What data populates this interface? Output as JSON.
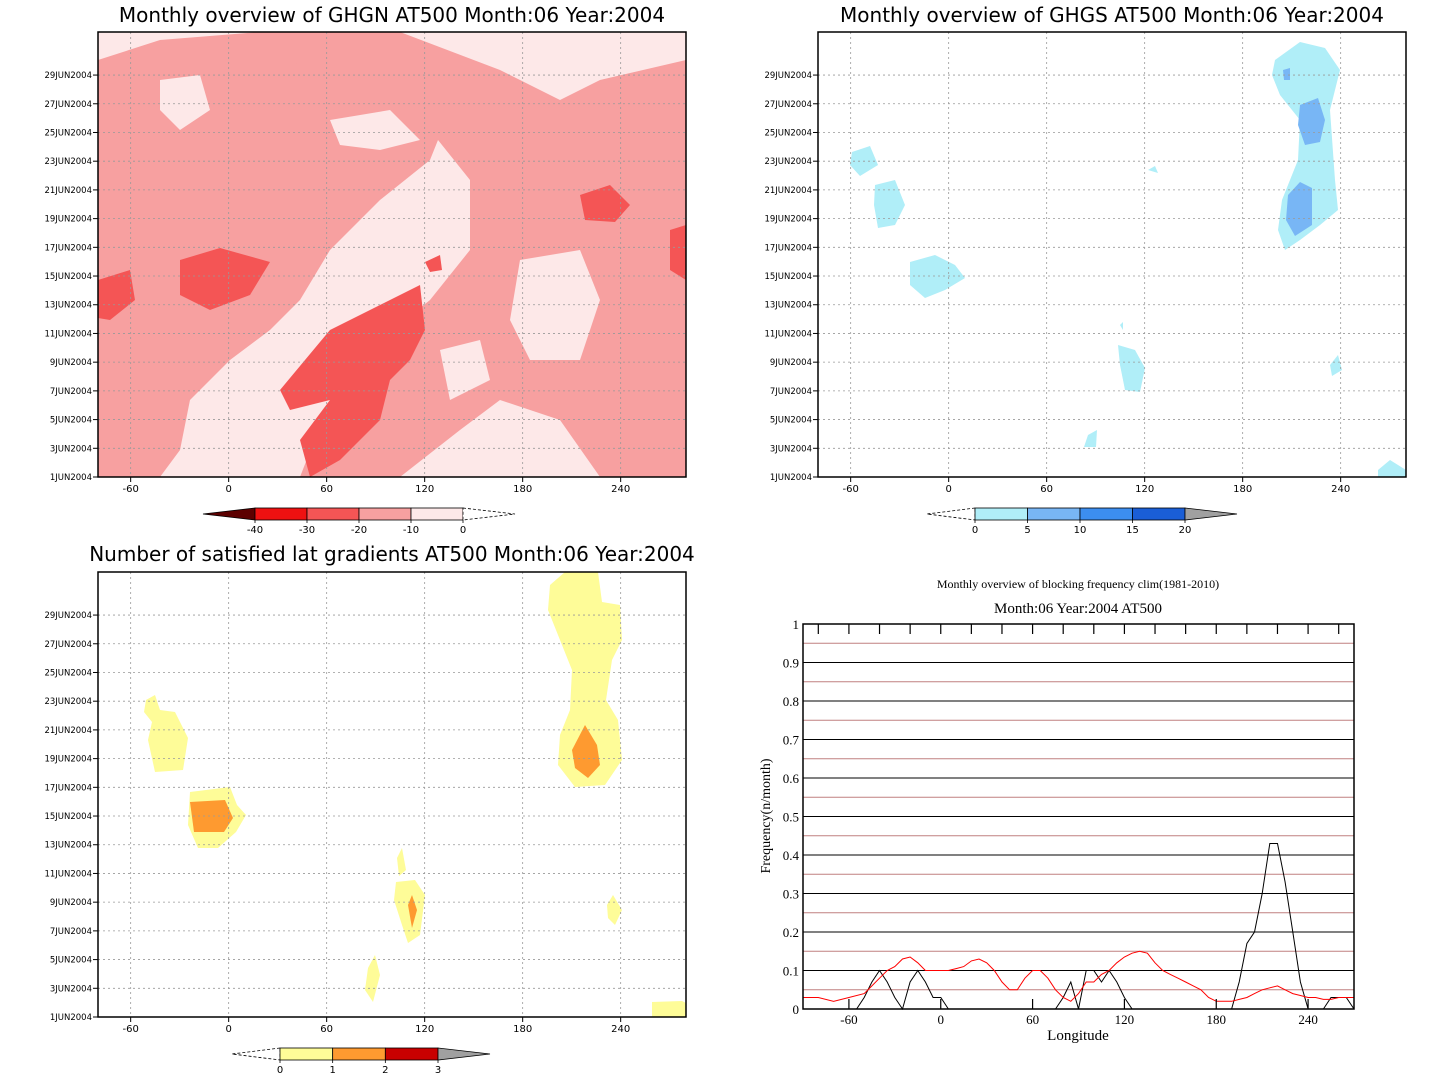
{
  "chart_data": [
    {
      "type": "heatmap",
      "title": "Monthly overview of GHGN AT500 Month:06 Year:2004",
      "x_ticks": [
        -60,
        0,
        60,
        120,
        180,
        240
      ],
      "xlim": [
        -80,
        280
      ],
      "y_ticks": [
        "1JUN2004",
        "3JUN2004",
        "5JUN2004",
        "7JUN2004",
        "9JUN2004",
        "11JUN2004",
        "13JUN2004",
        "15JUN2004",
        "17JUN2004",
        "19JUN2004",
        "21JUN2004",
        "23JUN2004",
        "25JUN2004",
        "27JUN2004",
        "29JUN2004"
      ],
      "colorbar": {
        "labels": [
          "-40",
          "-30",
          "-20",
          "-10",
          "0"
        ],
        "colors": [
          "#5c0000",
          "#ee1111",
          "#f45555",
          "#f7a0a0",
          "#fde8e8"
        ]
      }
    },
    {
      "type": "heatmap",
      "title": "Monthly overview of GHGS AT500 Month:06 Year:2004",
      "x_ticks": [
        -60,
        0,
        60,
        120,
        180,
        240
      ],
      "xlim": [
        -80,
        280
      ],
      "y_ticks": [
        "1JUN2004",
        "3JUN2004",
        "5JUN2004",
        "7JUN2004",
        "9JUN2004",
        "11JUN2004",
        "13JUN2004",
        "15JUN2004",
        "17JUN2004",
        "19JUN2004",
        "21JUN2004",
        "23JUN2004",
        "25JUN2004",
        "27JUN2004",
        "29JUN2004"
      ],
      "colorbar": {
        "labels": [
          "0",
          "5",
          "10",
          "15",
          "20"
        ],
        "colors": [
          "#b0eef8",
          "#78b6f5",
          "#3c8ef0",
          "#1a5ed6",
          "#a0a0a0"
        ]
      }
    },
    {
      "type": "heatmap",
      "title": "Number of satisfied lat gradients AT500 Month:06 Year:2004",
      "x_ticks": [
        -60,
        0,
        60,
        120,
        180,
        240
      ],
      "xlim": [
        -80,
        280
      ],
      "y_ticks": [
        "1JUN2004",
        "3JUN2004",
        "5JUN2004",
        "7JUN2004",
        "9JUN2004",
        "11JUN2004",
        "13JUN2004",
        "15JUN2004",
        "17JUN2004",
        "19JUN2004",
        "21JUN2004",
        "23JUN2004",
        "25JUN2004",
        "27JUN2004",
        "29JUN2004"
      ],
      "colorbar": {
        "labels": [
          "0",
          "1",
          "2",
          "3"
        ],
        "colors": [
          "#fefc98",
          "#fe9a30",
          "#c80000",
          "#a0a0a0"
        ]
      }
    },
    {
      "type": "line",
      "title": "Monthly overview of blocking frequency clim(1981-2010)",
      "subtitle": "Month:06 Year:2004  AT500",
      "xlabel": "Longitude",
      "ylabel": "Frequency(n/month)",
      "xlim": [
        -90,
        270
      ],
      "ylim": [
        0,
        1
      ],
      "x_ticks": [
        -60,
        0,
        60,
        120,
        180,
        240
      ],
      "y_ticks": [
        "0",
        "0.1",
        "0.2",
        "0.3",
        "0.4",
        "0.5",
        "0.6",
        "0.7",
        "0.8",
        "0.9",
        "1"
      ],
      "series": [
        {
          "color": "#000000",
          "x": [
            -90,
            -70,
            -55,
            -50,
            -45,
            -40,
            -35,
            -30,
            -25,
            -20,
            -15,
            -10,
            -5,
            0,
            5,
            10,
            15,
            20,
            25,
            30,
            35,
            40,
            45,
            50,
            55,
            60,
            65,
            70,
            75,
            80,
            85,
            90,
            95,
            100,
            105,
            110,
            115,
            120,
            125,
            130,
            135,
            140,
            145,
            150,
            155,
            160,
            165,
            170,
            175,
            180,
            185,
            190,
            195,
            200,
            205,
            210,
            215,
            220,
            225,
            230,
            235,
            240,
            245,
            250,
            255,
            260,
            265,
            270
          ],
          "y": [
            0,
            0,
            0,
            0.03,
            0.07,
            0.1,
            0.07,
            0.03,
            0,
            0.07,
            0.1,
            0.07,
            0.03,
            0.03,
            0,
            0,
            0,
            0,
            0,
            0,
            0,
            0,
            0,
            0,
            0,
            0,
            0,
            0,
            0,
            0.03,
            0.07,
            0,
            0.1,
            0.1,
            0.07,
            0.1,
            0.07,
            0.03,
            0,
            0,
            0,
            0,
            0,
            0,
            0,
            0,
            0,
            0,
            0,
            0,
            0,
            0,
            0.07,
            0.17,
            0.2,
            0.3,
            0.43,
            0.43,
            0.33,
            0.2,
            0.07,
            0,
            0,
            0,
            0.03,
            0.03,
            0.03,
            0
          ]
        },
        {
          "color": "#ff0000",
          "x": [
            -90,
            -80,
            -70,
            -60,
            -50,
            -45,
            -40,
            -35,
            -30,
            -25,
            -20,
            -15,
            -10,
            -5,
            0,
            5,
            10,
            15,
            20,
            25,
            30,
            35,
            40,
            45,
            50,
            55,
            60,
            65,
            70,
            75,
            80,
            85,
            90,
            95,
            100,
            105,
            110,
            115,
            120,
            125,
            130,
            135,
            140,
            145,
            150,
            155,
            160,
            165,
            170,
            175,
            180,
            185,
            190,
            195,
            200,
            205,
            210,
            215,
            220,
            225,
            230,
            235,
            240,
            245,
            250,
            255,
            260,
            265,
            270
          ],
          "y": [
            0.03,
            0.03,
            0.02,
            0.03,
            0.04,
            0.06,
            0.08,
            0.1,
            0.11,
            0.13,
            0.135,
            0.12,
            0.1,
            0.1,
            0.1,
            0.1,
            0.105,
            0.11,
            0.125,
            0.13,
            0.12,
            0.1,
            0.07,
            0.05,
            0.05,
            0.08,
            0.1,
            0.1,
            0.08,
            0.05,
            0.03,
            0.02,
            0.04,
            0.07,
            0.07,
            0.09,
            0.1,
            0.12,
            0.135,
            0.145,
            0.15,
            0.145,
            0.12,
            0.1,
            0.09,
            0.08,
            0.07,
            0.06,
            0.05,
            0.03,
            0.02,
            0.02,
            0.02,
            0.025,
            0.03,
            0.04,
            0.05,
            0.055,
            0.06,
            0.05,
            0.04,
            0.035,
            0.03,
            0.03,
            0.025,
            0.025,
            0.03,
            0.03,
            0.03
          ]
        }
      ]
    }
  ]
}
